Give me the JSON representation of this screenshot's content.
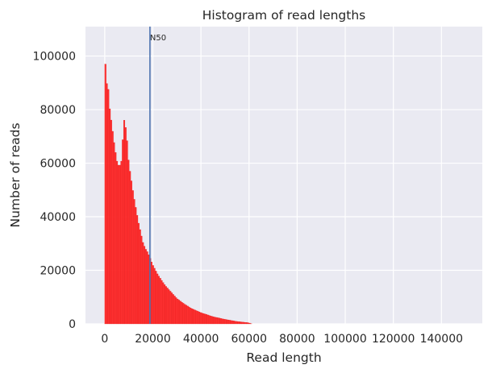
{
  "chart_data": {
    "type": "bar",
    "title": "Histogram of read lengths",
    "xlabel": "Read length",
    "ylabel": "Number of reads",
    "xlim": [
      -8000,
      157000
    ],
    "ylim": [
      0,
      111000
    ],
    "xticks": [
      0,
      20000,
      40000,
      60000,
      80000,
      100000,
      120000,
      140000
    ],
    "yticks": [
      0,
      20000,
      40000,
      60000,
      80000,
      100000
    ],
    "grid": true,
    "bin_width": 600,
    "histogram": {
      "x": [
        0,
        600,
        1200,
        2000,
        3000,
        4000,
        5000,
        6000,
        7000,
        8000,
        9000,
        10000,
        11000,
        12000,
        13000,
        14000,
        15000,
        16000,
        17000,
        18000,
        20000,
        22000,
        25000,
        28000,
        30000,
        33000,
        36000,
        40000,
        45000,
        50000,
        55000,
        60000,
        61000
      ],
      "y": [
        106000,
        88000,
        91500,
        81000,
        74000,
        67000,
        61000,
        58500,
        61000,
        76500,
        72000,
        60000,
        54000,
        48000,
        43000,
        38000,
        34000,
        30000,
        28000,
        26500,
        22000,
        18500,
        14500,
        11500,
        9500,
        7500,
        5800,
        4200,
        2700,
        1700,
        900,
        400,
        0
      ]
    },
    "n50": {
      "x": 18800,
      "label": "N50"
    },
    "colors": {
      "bars": "#ff2020",
      "n50_line": "#4c72b0",
      "plot_bg": "#eaeaf2",
      "grid": "#ffffff"
    }
  }
}
